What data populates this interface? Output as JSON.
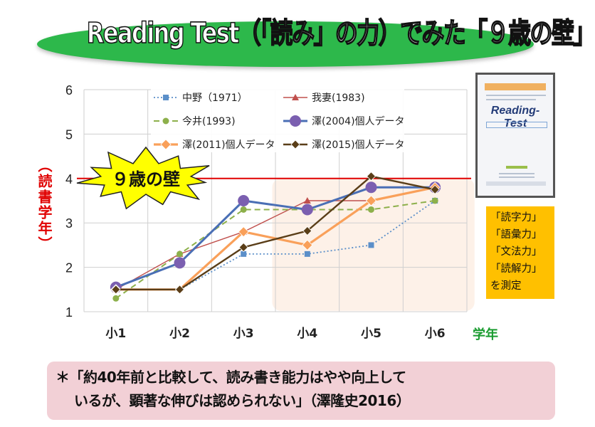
{
  "title": "Reading Test（「読み」の力）でみた「９歳の壁」",
  "chart_data": {
    "type": "line",
    "categories": [
      "小1",
      "小2",
      "小3",
      "小4",
      "小5",
      "小6"
    ],
    "ylim": [
      1,
      6
    ],
    "yticks": [
      1,
      2,
      3,
      4,
      5,
      6
    ],
    "ylabel": "（読書学年）",
    "xlabel": "学年",
    "grid": true,
    "legend_position": "top",
    "reference_line": {
      "value": 4,
      "color": "#e00000"
    },
    "annotation": "９歳の壁",
    "series": [
      {
        "name": "中野（1971）",
        "values": [
          1.5,
          1.5,
          2.3,
          2.3,
          2.5,
          3.5
        ],
        "color": "#5b8fc9",
        "style": "dotted",
        "marker": "square",
        "marker_size": 4,
        "width": 1.8
      },
      {
        "name": "我妻(1983)",
        "values": [
          1.5,
          2.3,
          2.8,
          3.5,
          3.5,
          3.8
        ],
        "color": "#c0504d",
        "style": "solid",
        "marker": "triangle",
        "marker_size": 5,
        "width": 1.4
      },
      {
        "name": "今井(1993)",
        "values": [
          1.3,
          2.3,
          3.3,
          3.3,
          3.3,
          3.5
        ],
        "color": "#8db04b",
        "style": "dashed",
        "marker": "circle",
        "marker_size": 4.5,
        "width": 2
      },
      {
        "name": "澤(2004)個人データ",
        "values": [
          1.55,
          2.1,
          3.5,
          3.3,
          3.8,
          3.8
        ],
        "color": "#4a6fb5",
        "marker_fill": "#7b5fb0",
        "style": "solid",
        "marker": "circle",
        "marker_size": 8,
        "width": 3
      },
      {
        "name": "澤(2011)個人データ",
        "values": [
          1.5,
          1.5,
          2.8,
          2.5,
          3.5,
          3.8
        ],
        "color": "#f9a05a",
        "style": "solid",
        "marker": "diamond",
        "marker_size": 7,
        "width": 3.2
      },
      {
        "name": "澤(2015)個人データ",
        "values": [
          1.5,
          1.5,
          2.45,
          2.82,
          4.05,
          3.75
        ],
        "color": "#5a3e18",
        "style": "solid",
        "marker": "diamond",
        "marker_size": 6,
        "width": 2.4
      }
    ]
  },
  "book": {
    "title": "Reading-Test"
  },
  "skills": [
    "「読字力」",
    "「語彙力」",
    "「文法力」",
    "「読解力」",
    "を測定"
  ],
  "quote": {
    "line1": "＊「約40年前と比較して、読み書き能力はやや向上して",
    "line2": "いるが、顕著な伸びは認められない」（澤隆史2016）"
  }
}
